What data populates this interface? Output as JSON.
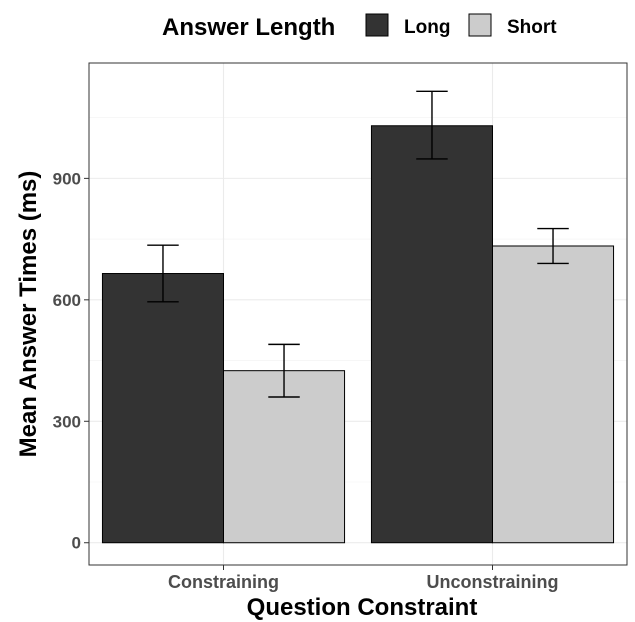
{
  "chart_data": {
    "type": "bar",
    "xlabel": "Question Constraint",
    "ylabel": "Mean Answer Times (ms)",
    "categories": [
      "Constraining",
      "Unconstraining"
    ],
    "series": [
      {
        "name": "Long",
        "color": "#333333",
        "values": [
          665,
          1030
        ],
        "err_low": [
          595,
          948
        ],
        "err_high": [
          735,
          1115
        ]
      },
      {
        "name": "Short",
        "color": "#cccccc",
        "values": [
          425,
          733
        ],
        "err_low": [
          360,
          690
        ],
        "err_high": [
          490,
          776
        ]
      }
    ],
    "ylim": [
      -55,
      1185
    ],
    "yticks": [
      0,
      300,
      600,
      900
    ],
    "ytick_labels": [
      "0",
      "300",
      "600",
      "900"
    ],
    "legend": {
      "title": "Answer Length",
      "position": "top"
    },
    "grid": true
  }
}
